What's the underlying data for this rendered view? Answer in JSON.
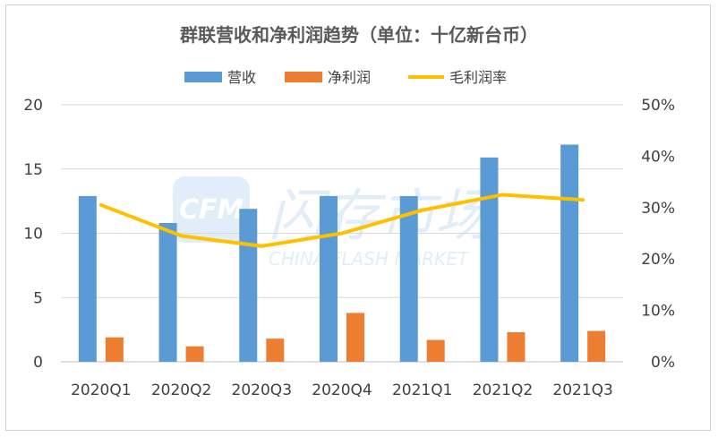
{
  "chart_data": {
    "type": "bar",
    "title": "群联营收和净利润趋势（单位：十亿新台币）",
    "categories": [
      "2020Q1",
      "2020Q2",
      "2020Q3",
      "2020Q4",
      "2021Q1",
      "2021Q2",
      "2021Q3"
    ],
    "series": [
      {
        "name": "营收",
        "type": "bar",
        "axis": "left",
        "color": "#5b9bd5",
        "values": [
          12.9,
          10.8,
          11.9,
          12.9,
          12.9,
          15.9,
          16.9
        ]
      },
      {
        "name": "净利润",
        "type": "bar",
        "axis": "left",
        "color": "#ed7d31",
        "values": [
          1.9,
          1.2,
          1.8,
          3.8,
          1.7,
          2.3,
          2.4
        ]
      },
      {
        "name": "毛利润率",
        "type": "line",
        "axis": "right",
        "color": "#ffc000",
        "values": [
          30.5,
          24.5,
          22.5,
          25,
          29.5,
          32.5,
          31.5
        ]
      }
    ],
    "y_left": {
      "min": 0,
      "max": 20,
      "ticks": [
        "0",
        "5",
        "10",
        "15",
        "20"
      ]
    },
    "y_right": {
      "min": 0,
      "max": 50,
      "ticks": [
        "0%",
        "10%",
        "20%",
        "30%",
        "40%",
        "50%"
      ]
    },
    "grid": "horizontal",
    "legend": "top"
  },
  "watermark": {
    "logo": "CFM",
    "cn": "闪存市场",
    "en": "CHINA FLASH MARKET"
  }
}
